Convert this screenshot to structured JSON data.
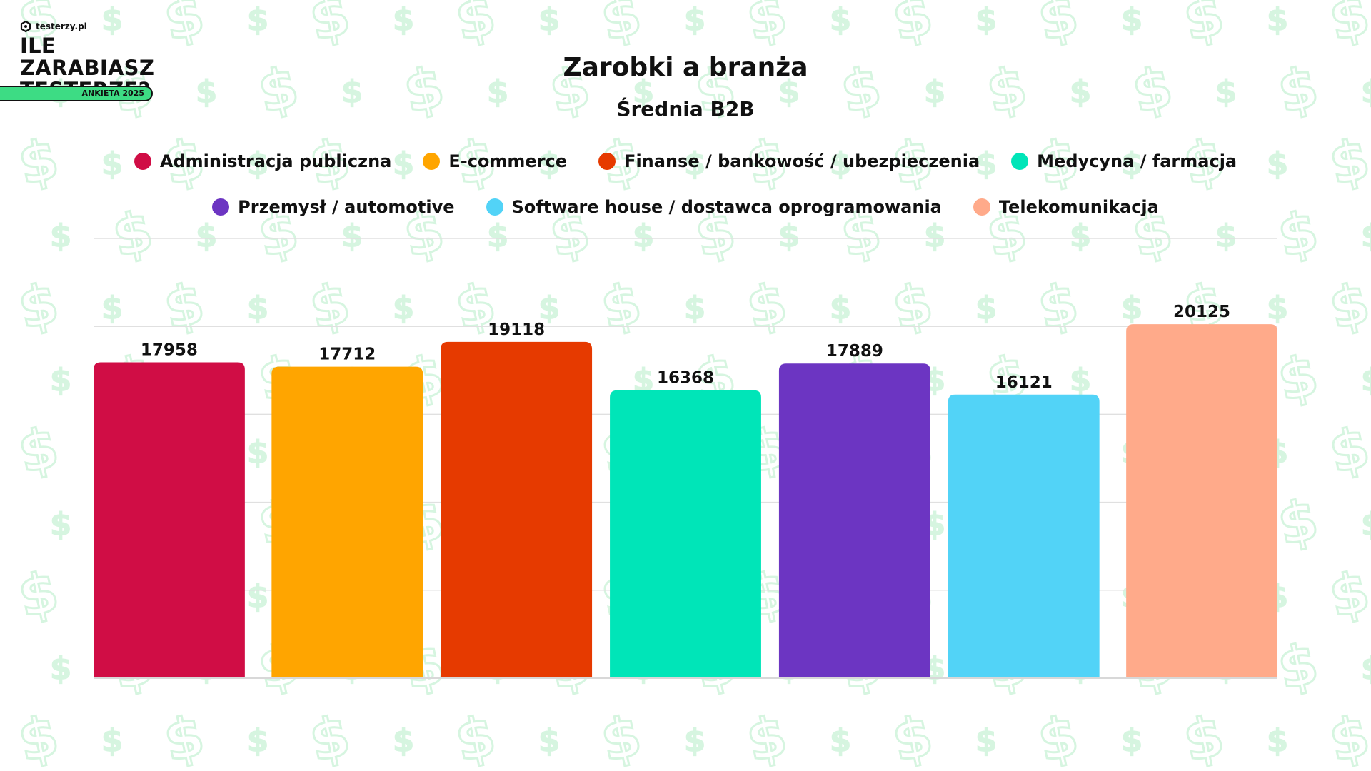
{
  "brand": {
    "site": "testerzy.pl",
    "title": "ILE ZARABIASZ TESTERZE?",
    "badge": "ANKIETA 2025",
    "pattern_icon": "dollar-icon",
    "pattern_color": "#d6f5e0"
  },
  "chart_data": {
    "type": "bar",
    "title": "Zarobki a branża",
    "subtitle": "Średnia B2B",
    "xlabel": "",
    "ylabel": "",
    "ylim": [
      0,
      25000
    ],
    "grid": true,
    "legend_position": "top",
    "categories": [
      "Administracja publiczna",
      "E-commerce",
      "Finanse / bankowość / ubezpieczenia",
      "Medycyna / farmacja",
      "Przemysł / automotive",
      "Software house / dostawca oprogramowania",
      "Telekomunikacja"
    ],
    "values": [
      17958,
      17712,
      19118,
      16368,
      17889,
      16121,
      20125
    ],
    "colors": [
      "#d00d45",
      "#ffa500",
      "#e63a00",
      "#00e5b8",
      "#6c35c2",
      "#52d3f7",
      "#ffaa8a"
    ]
  }
}
